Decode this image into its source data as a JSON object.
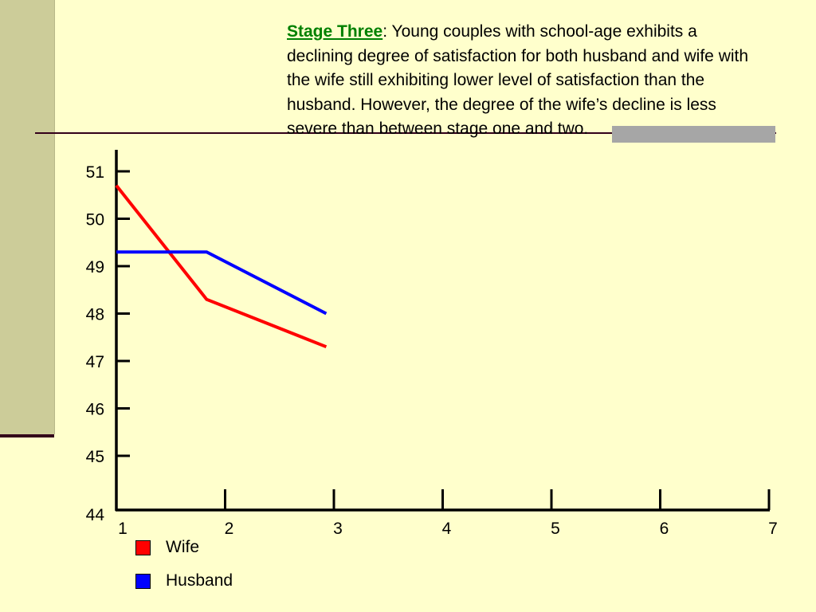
{
  "slide": {
    "caption_heading": "Stage Three",
    "caption_text": ": Young couples with school-age exhibits a declining degree of satisfaction for both husband and wife with the wife still exhibiting lower level of satisfaction than the husband.  However, the degree of the wife’s decline is less severe than between stage one and two.",
    "colors": {
      "background": "#FFFFCC",
      "heading": "#008000",
      "accent_band": "#CCCC99",
      "rule": "#33001A"
    }
  },
  "chart_data": {
    "type": "line",
    "title": "",
    "xlabel": "",
    "ylabel": "",
    "x": [
      1,
      2,
      3,
      4,
      5,
      6,
      7
    ],
    "x_tick_labels": [
      "1",
      "2",
      "3",
      "4",
      "5",
      "6",
      "7"
    ],
    "y_tick_labels": [
      "44",
      "45",
      "46",
      "47",
      "48",
      "49",
      "50",
      "51"
    ],
    "ylim": [
      44,
      51
    ],
    "xlim": [
      1,
      7
    ],
    "grid": false,
    "legend_position": "bottom-left",
    "series": [
      {
        "name": "Wife",
        "color": "#FF0000",
        "x": [
          1,
          1.83,
          2.93
        ],
        "y": [
          50.7,
          48.3,
          47.3
        ]
      },
      {
        "name": "Husband",
        "color": "#0000FF",
        "x": [
          1,
          1.83,
          2.93
        ],
        "y": [
          49.3,
          49.3,
          48.0
        ]
      }
    ]
  }
}
